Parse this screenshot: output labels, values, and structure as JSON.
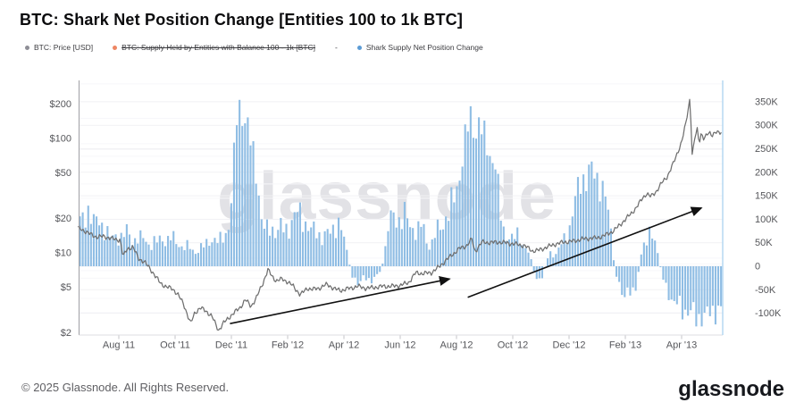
{
  "title": "BTC: Shark Net Position Change [Entities 100 to 1k BTC]",
  "legend": {
    "separator": "-",
    "items": [
      {
        "label": "BTC: Price [USD]",
        "color": "#8e8e96",
        "disabled": false
      },
      {
        "label": "BTC: Supply Held by Entities with Balance 100 - 1k [BTC]",
        "color": "#ee8663",
        "disabled": true
      },
      {
        "label": "Shark Supply Net Position Change",
        "color": "#5b9bd5",
        "disabled": false
      }
    ]
  },
  "watermark": "glassnode",
  "footer": {
    "copyright": "© 2025 Glassnode. All Rights Reserved.",
    "logo_text": "glassnode"
  },
  "chart_data": {
    "type": "combo",
    "x_unit": "months since 2011-06-01",
    "grid": "horizontal-faint",
    "x_ticks": [
      [
        2,
        "Aug '11"
      ],
      [
        4,
        "Oct '11"
      ],
      [
        6,
        "Dec '11"
      ],
      [
        8,
        "Feb '12"
      ],
      [
        10,
        "Apr '12"
      ],
      [
        12,
        "Jun '12"
      ],
      [
        14,
        "Aug '12"
      ],
      [
        16,
        "Oct '12"
      ],
      [
        18,
        "Dec '12"
      ],
      [
        20,
        "Feb '13"
      ],
      [
        22,
        "Apr '13"
      ]
    ],
    "left_axis": {
      "scale": "log",
      "unit": "USD",
      "position": "left",
      "ticks": [
        [
          200,
          "$200"
        ],
        [
          100,
          "$100"
        ],
        [
          50,
          "$50"
        ],
        [
          20,
          "$20"
        ],
        [
          10,
          "$10"
        ],
        [
          5,
          "$5"
        ],
        [
          2,
          "$2"
        ]
      ]
    },
    "right_axis": {
      "scale": "linear",
      "unit": "BTC",
      "position": "right",
      "color": "#b5d8f2",
      "ticks": [
        [
          350000,
          "350K"
        ],
        [
          300000,
          "300K"
        ],
        [
          250000,
          "250K"
        ],
        [
          200000,
          "200K"
        ],
        [
          150000,
          "150K"
        ],
        [
          100000,
          "100K"
        ],
        [
          50000,
          "50K"
        ],
        [
          0,
          "0"
        ],
        [
          -50000,
          "-50K"
        ],
        [
          -100000,
          "-100K"
        ]
      ]
    },
    "series": [
      {
        "name": "BTC: Price [USD]",
        "type": "line",
        "axis": "left",
        "color": "#6f6f6f",
        "points": [
          [
            0.55,
            16.5
          ],
          [
            0.8,
            15.5
          ],
          [
            1.0,
            14.5
          ],
          [
            1.2,
            13.8
          ],
          [
            1.5,
            13.9
          ],
          [
            1.8,
            13.2
          ],
          [
            2.05,
            13.0
          ],
          [
            2.15,
            9.2
          ],
          [
            2.3,
            10.9
          ],
          [
            2.5,
            11.2
          ],
          [
            2.7,
            9.0
          ],
          [
            2.9,
            8.3
          ],
          [
            3.1,
            7.4
          ],
          [
            3.3,
            6.2
          ],
          [
            3.5,
            5.4
          ],
          [
            3.7,
            5.0
          ],
          [
            3.9,
            4.9
          ],
          [
            4.1,
            4.3
          ],
          [
            4.3,
            3.6
          ],
          [
            4.55,
            2.4
          ],
          [
            4.7,
            3.0
          ],
          [
            4.9,
            3.3
          ],
          [
            5.1,
            3.1
          ],
          [
            5.3,
            2.8
          ],
          [
            5.55,
            2.1
          ],
          [
            5.7,
            2.4
          ],
          [
            5.9,
            2.7
          ],
          [
            6.1,
            3.0
          ],
          [
            6.3,
            3.3
          ],
          [
            6.5,
            3.9
          ],
          [
            6.7,
            3.4
          ],
          [
            6.9,
            4.1
          ],
          [
            7.1,
            5.3
          ],
          [
            7.3,
            7.1
          ],
          [
            7.45,
            6.2
          ],
          [
            7.6,
            5.7
          ],
          [
            7.8,
            5.9
          ],
          [
            8.0,
            5.6
          ],
          [
            8.2,
            5.1
          ],
          [
            8.45,
            4.3
          ],
          [
            8.7,
            4.9
          ],
          [
            8.9,
            4.8
          ],
          [
            9.1,
            4.9
          ],
          [
            9.4,
            5.3
          ],
          [
            9.7,
            4.8
          ],
          [
            9.9,
            4.7
          ],
          [
            10.2,
            4.9
          ],
          [
            10.5,
            5.1
          ],
          [
            10.8,
            4.9
          ],
          [
            11.1,
            5.0
          ],
          [
            11.4,
            5.1
          ],
          [
            11.7,
            5.1
          ],
          [
            12.0,
            5.2
          ],
          [
            12.3,
            5.5
          ],
          [
            12.55,
            6.7
          ],
          [
            12.8,
            6.6
          ],
          [
            13.1,
            6.7
          ],
          [
            13.4,
            7.6
          ],
          [
            13.6,
            8.5
          ],
          [
            13.8,
            9.4
          ],
          [
            14.1,
            10.9
          ],
          [
            14.35,
            11.5
          ],
          [
            14.55,
            13.2
          ],
          [
            14.65,
            10.2
          ],
          [
            14.9,
            12.4
          ],
          [
            15.2,
            12.3
          ],
          [
            15.5,
            12.4
          ],
          [
            15.8,
            12.2
          ],
          [
            16.1,
            11.9
          ],
          [
            16.4,
            11.6
          ],
          [
            16.7,
            10.4
          ],
          [
            16.9,
            10.5
          ],
          [
            17.2,
            11.2
          ],
          [
            17.5,
            11.9
          ],
          [
            17.8,
            12.4
          ],
          [
            18.1,
            12.6
          ],
          [
            18.4,
            13.1
          ],
          [
            18.7,
            13.4
          ],
          [
            19.0,
            13.5
          ],
          [
            19.3,
            14.3
          ],
          [
            19.6,
            15.7
          ],
          [
            19.8,
            17.5
          ],
          [
            20.0,
            19.6
          ],
          [
            20.2,
            22
          ],
          [
            20.4,
            25
          ],
          [
            20.6,
            29.9
          ],
          [
            20.75,
            33
          ],
          [
            20.9,
            31
          ],
          [
            21.1,
            34.5
          ],
          [
            21.3,
            41
          ],
          [
            21.5,
            47
          ],
          [
            21.7,
            60
          ],
          [
            21.85,
            75
          ],
          [
            22.0,
            93
          ],
          [
            22.15,
            135
          ],
          [
            22.3,
            230
          ],
          [
            22.38,
            68
          ],
          [
            22.45,
            95
          ],
          [
            22.55,
            122
          ],
          [
            22.62,
            92
          ],
          [
            22.7,
            112
          ],
          [
            22.8,
            98
          ],
          [
            22.9,
            108
          ],
          [
            23.0,
            112
          ],
          [
            23.1,
            108
          ],
          [
            23.2,
            114
          ],
          [
            23.3,
            111
          ],
          [
            23.42,
            113
          ]
        ]
      },
      {
        "name": "Shark Supply Net Position Change",
        "type": "bar",
        "axis": "right",
        "color": "#8fbde4",
        "points": [
          [
            0.62,
            95000
          ],
          [
            0.9,
            112000
          ],
          [
            1.1,
            85000
          ],
          [
            1.3,
            100000
          ],
          [
            1.5,
            80000
          ],
          [
            1.7,
            65000
          ],
          [
            1.9,
            72000
          ],
          [
            2.1,
            60000
          ],
          [
            2.3,
            72000
          ],
          [
            2.5,
            50000
          ],
          [
            2.7,
            55000
          ],
          [
            2.9,
            62000
          ],
          [
            3.1,
            48000
          ],
          [
            3.3,
            55000
          ],
          [
            3.5,
            62000
          ],
          [
            3.7,
            52000
          ],
          [
            3.9,
            58000
          ],
          [
            4.1,
            45000
          ],
          [
            4.3,
            38000
          ],
          [
            4.5,
            45000
          ],
          [
            4.7,
            32000
          ],
          [
            4.9,
            40000
          ],
          [
            5.1,
            48000
          ],
          [
            5.3,
            55000
          ],
          [
            5.5,
            48000
          ],
          [
            5.7,
            58000
          ],
          [
            5.9,
            85000
          ],
          [
            6.05,
            180000
          ],
          [
            6.15,
            300000
          ],
          [
            6.25,
            360000
          ],
          [
            6.4,
            330000
          ],
          [
            6.55,
            305000
          ],
          [
            6.7,
            255000
          ],
          [
            6.85,
            215000
          ],
          [
            6.95,
            160000
          ],
          [
            7.05,
            95000
          ],
          [
            7.2,
            70000
          ],
          [
            7.4,
            88000
          ],
          [
            7.6,
            75000
          ],
          [
            7.8,
            92000
          ],
          [
            8.0,
            82000
          ],
          [
            8.2,
            96000
          ],
          [
            8.4,
            112000
          ],
          [
            8.6,
            88000
          ],
          [
            8.8,
            72000
          ],
          [
            9.0,
            85000
          ],
          [
            9.2,
            65000
          ],
          [
            9.4,
            72000
          ],
          [
            9.6,
            80000
          ],
          [
            9.8,
            88000
          ],
          [
            10.0,
            55000
          ],
          [
            10.15,
            18000
          ],
          [
            10.3,
            -22000
          ],
          [
            10.5,
            -35000
          ],
          [
            10.7,
            -25000
          ],
          [
            10.9,
            -38000
          ],
          [
            11.1,
            -20000
          ],
          [
            11.3,
            -10000
          ],
          [
            11.45,
            25000
          ],
          [
            11.6,
            85000
          ],
          [
            11.8,
            115000
          ],
          [
            12.0,
            95000
          ],
          [
            12.2,
            118000
          ],
          [
            12.4,
            92000
          ],
          [
            12.6,
            70000
          ],
          [
            12.8,
            88000
          ],
          [
            12.95,
            45000
          ],
          [
            13.1,
            40000
          ],
          [
            13.3,
            75000
          ],
          [
            13.5,
            95000
          ],
          [
            13.7,
            120000
          ],
          [
            13.9,
            150000
          ],
          [
            14.1,
            190000
          ],
          [
            14.3,
            260000
          ],
          [
            14.5,
            310000
          ],
          [
            14.65,
            275000
          ],
          [
            14.8,
            300000
          ],
          [
            14.95,
            285000
          ],
          [
            15.1,
            265000
          ],
          [
            15.25,
            240000
          ],
          [
            15.4,
            220000
          ],
          [
            15.5,
            150000
          ],
          [
            15.65,
            80000
          ],
          [
            15.8,
            60000
          ],
          [
            16.0,
            52000
          ],
          [
            16.2,
            68000
          ],
          [
            16.4,
            42000
          ],
          [
            16.6,
            28000
          ],
          [
            16.75,
            -15000
          ],
          [
            16.9,
            -35000
          ],
          [
            17.05,
            -25000
          ],
          [
            17.2,
            15000
          ],
          [
            17.35,
            28000
          ],
          [
            17.5,
            20000
          ],
          [
            17.65,
            35000
          ],
          [
            17.8,
            55000
          ],
          [
            18.0,
            80000
          ],
          [
            18.15,
            130000
          ],
          [
            18.3,
            170000
          ],
          [
            18.45,
            195000
          ],
          [
            18.6,
            185000
          ],
          [
            18.75,
            200000
          ],
          [
            18.9,
            188000
          ],
          [
            19.05,
            172000
          ],
          [
            19.2,
            160000
          ],
          [
            19.35,
            130000
          ],
          [
            19.5,
            70000
          ],
          [
            19.65,
            -15000
          ],
          [
            19.8,
            -45000
          ],
          [
            19.95,
            -62000
          ],
          [
            20.1,
            -55000
          ],
          [
            20.25,
            -60000
          ],
          [
            20.4,
            -35000
          ],
          [
            20.55,
            20000
          ],
          [
            20.7,
            55000
          ],
          [
            20.85,
            72000
          ],
          [
            21.0,
            60000
          ],
          [
            21.15,
            30000
          ],
          [
            21.3,
            -20000
          ],
          [
            21.45,
            -45000
          ],
          [
            21.6,
            -65000
          ],
          [
            21.75,
            -80000
          ],
          [
            21.9,
            -72000
          ],
          [
            22.05,
            -85000
          ],
          [
            22.2,
            -92000
          ],
          [
            22.35,
            -100000
          ],
          [
            22.5,
            -112000
          ],
          [
            22.65,
            -122000
          ],
          [
            22.8,
            -118000
          ],
          [
            22.95,
            -108000
          ],
          [
            23.1,
            -98000
          ],
          [
            23.25,
            -88000
          ],
          [
            23.4,
            -80000
          ]
        ]
      }
    ],
    "annotations": {
      "arrows": [
        {
          "from": [
            5.95,
            -122000
          ],
          "to": [
            13.75,
            -27000
          ]
        },
        {
          "from": [
            14.4,
            -66000
          ],
          "to": [
            22.7,
            124000
          ]
        }
      ]
    }
  }
}
